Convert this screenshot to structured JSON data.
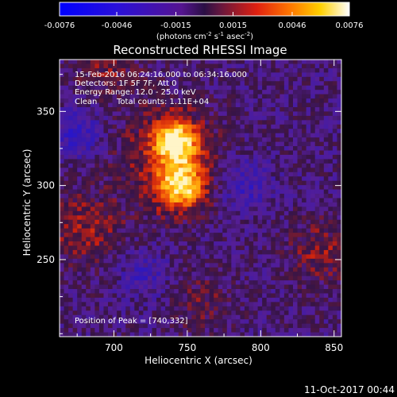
{
  "chart_data": {
    "type": "heatmap",
    "title": "Reconstructed RHESSI Image",
    "xlabel": "Heliocentric X (arcsec)",
    "ylabel": "Heliocentric Y (arcsec)",
    "xlim": [
      663,
      855
    ],
    "ylim": [
      198,
      385
    ],
    "x_ticks": [
      700,
      750,
      800,
      850
    ],
    "y_ticks": [
      250,
      300,
      350
    ],
    "colorbar": {
      "range": [
        -0.0076,
        0.0076
      ],
      "ticks": [
        "-0.0076",
        "-0.0046",
        "-0.0015",
        "0.0015",
        "0.0046",
        "0.0076"
      ],
      "tick_values": [
        -0.0076,
        -0.0046,
        -0.0015,
        0.0015,
        0.0046,
        0.0076
      ],
      "label": "(photons cm",
      "label_sup1": "-2",
      "label_mid": " s",
      "label_sup2": "-1",
      "label_mid2": " asec",
      "label_sup3": "-2",
      "label_end": ")"
    },
    "annotations": {
      "time": "15-Feb-2016 06:24:16.000 to 06:34:16.000",
      "detectors": "Detectors: 1F 5F 7F, Att 0",
      "energy": "Energy Range: 12.0 - 25.0 keV",
      "clean": "Clean",
      "counts": "Total counts: 1.11E+04",
      "peak": "Position of Peak = [740,332]"
    },
    "peak": [
      740,
      332
    ],
    "footer": "11-Oct-2017 00:44"
  }
}
